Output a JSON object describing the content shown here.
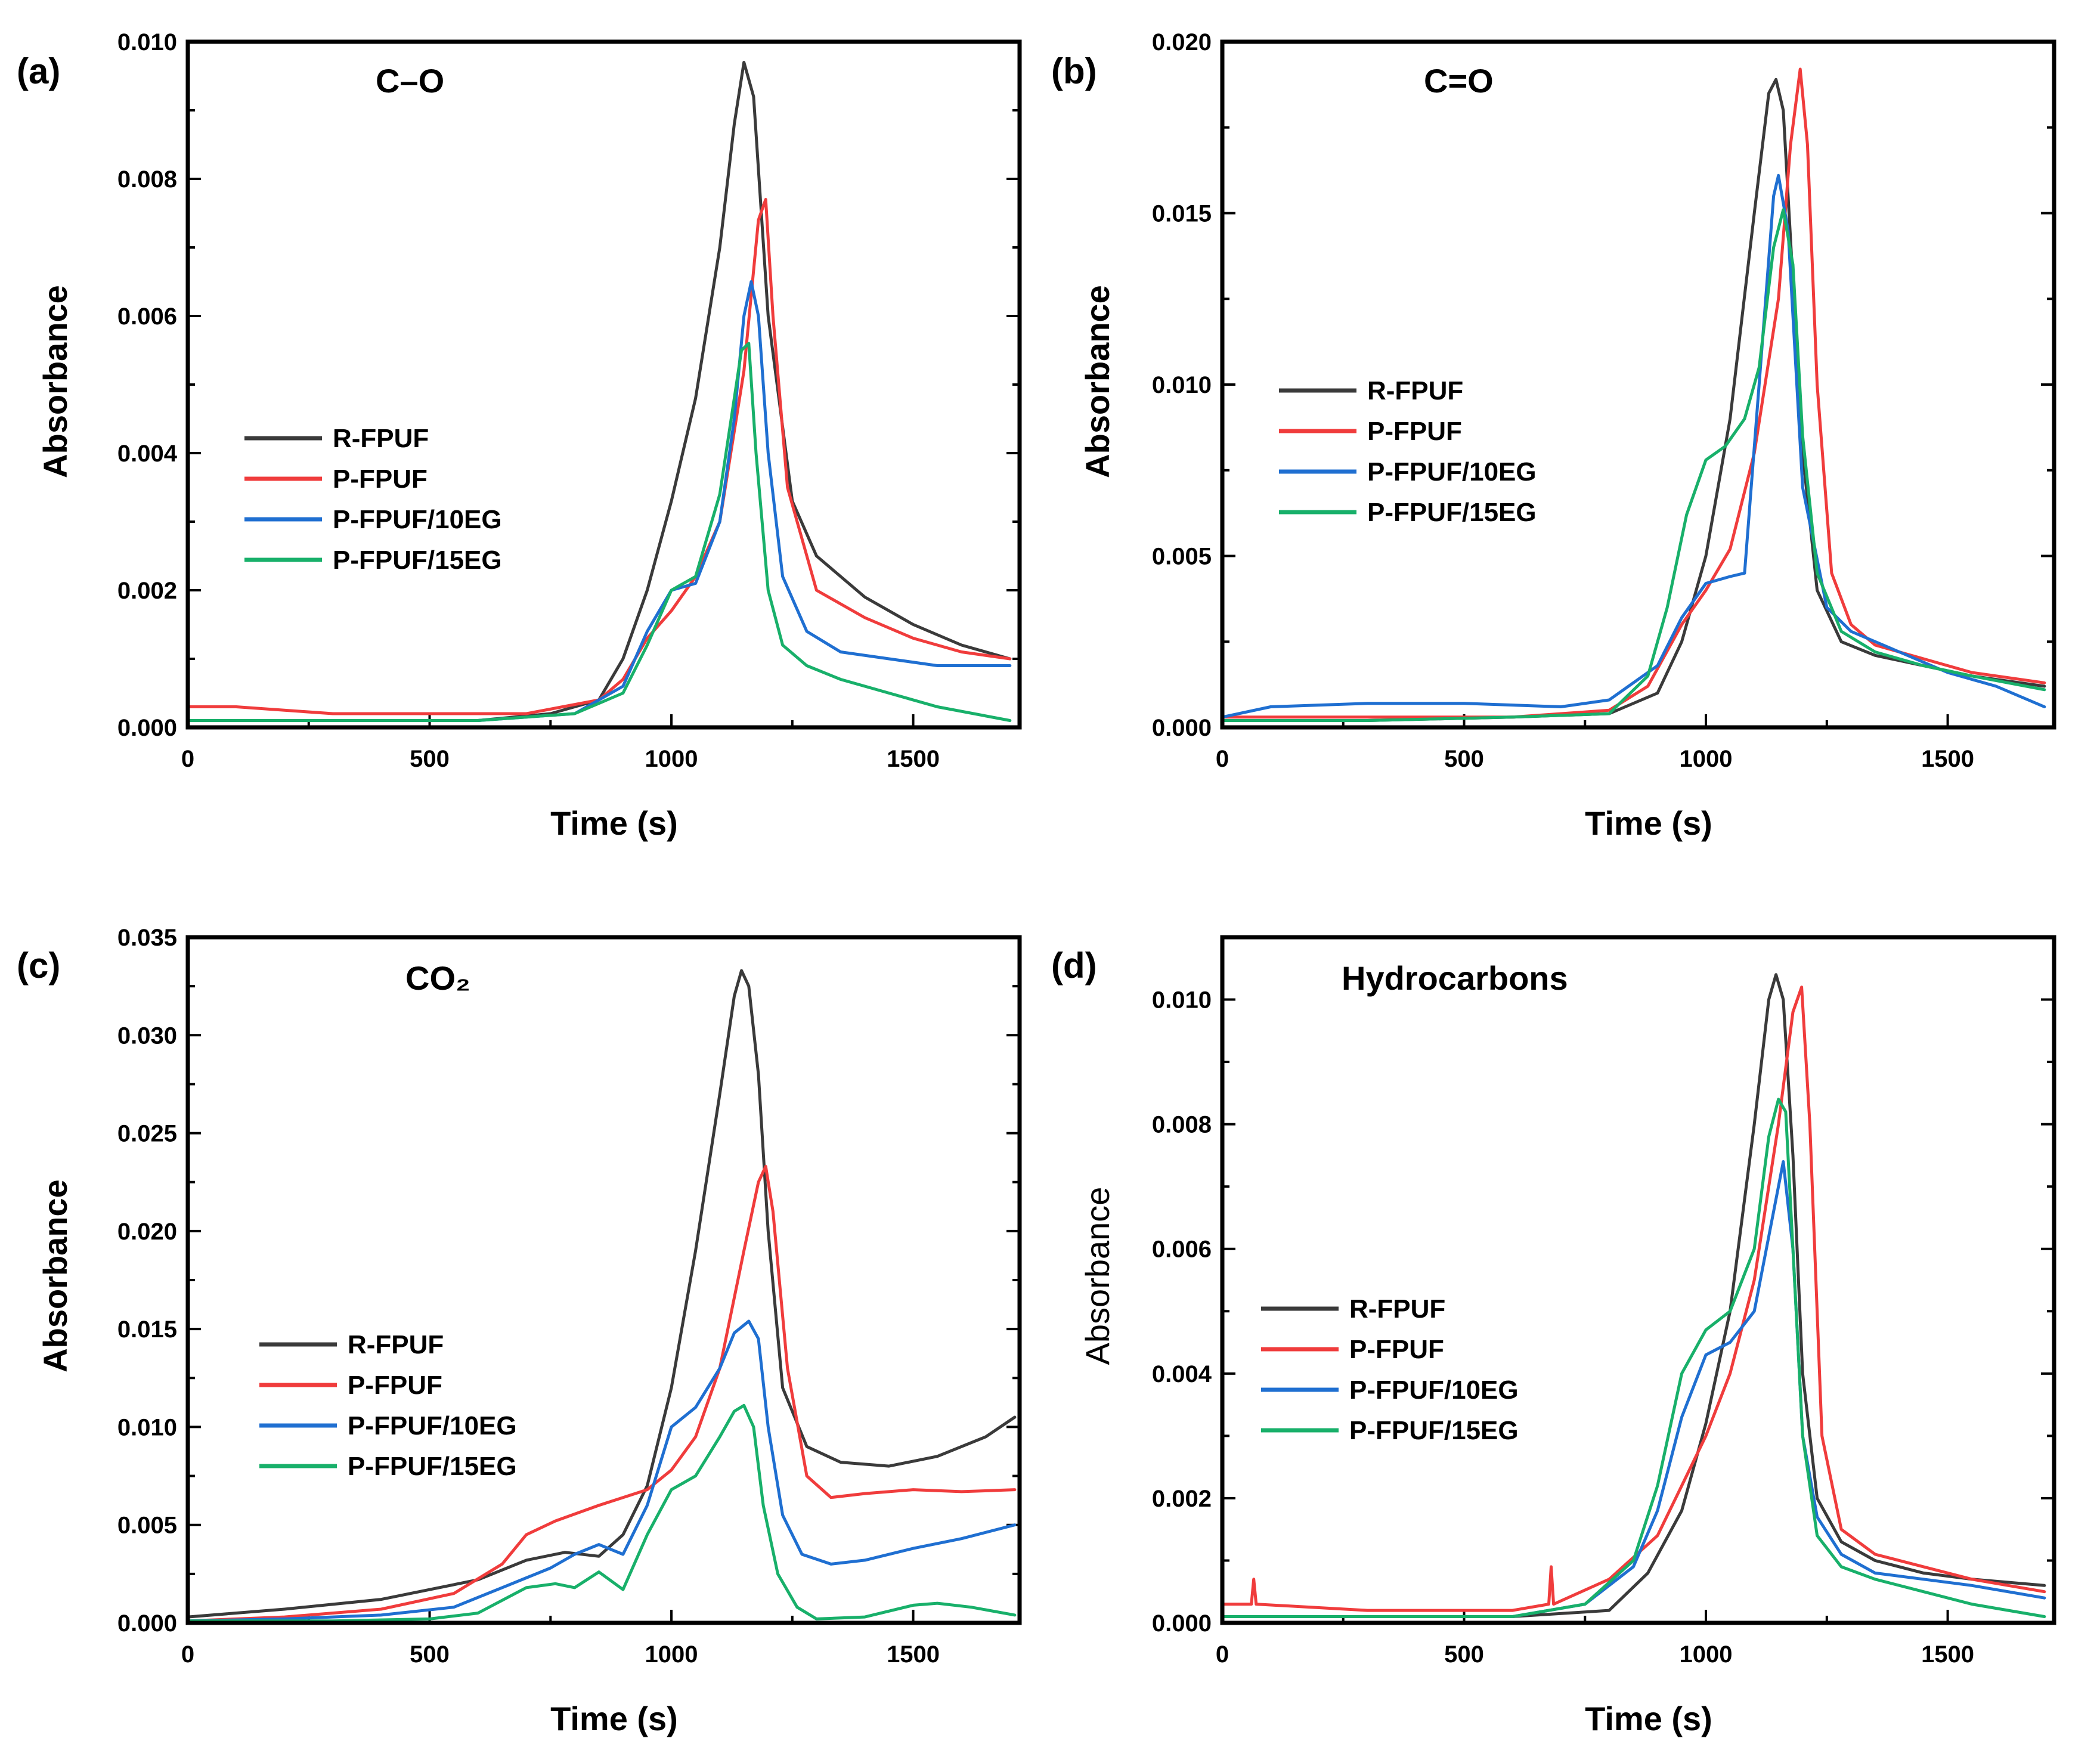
{
  "chart_data": [
    {
      "type": "line",
      "panel": "(a)",
      "title": "C–O",
      "xlabel": "Time (s)",
      "ylabel": "Absorbance",
      "xlim": [
        0,
        1720
      ],
      "ylim": [
        0,
        0.01
      ],
      "xticks": [
        "0",
        "500",
        "1000",
        "1500"
      ],
      "yticks": [
        "0.000",
        "0.002",
        "0.004",
        "0.006",
        "0.008",
        "0.010"
      ],
      "legend": [
        "R-FPUF",
        "P-FPUF",
        "P-FPUF/10EG",
        "P-FPUF/15EG"
      ],
      "series": [
        {
          "name": "R-FPUF",
          "color": "#3a3a3a",
          "x": [
            0,
            200,
            400,
            600,
            750,
            850,
            900,
            950,
            1000,
            1050,
            1100,
            1130,
            1150,
            1170,
            1200,
            1250,
            1300,
            1400,
            1500,
            1600,
            1700
          ],
          "y": [
            0.0001,
            0.0001,
            0.0001,
            0.0001,
            0.0002,
            0.0004,
            0.001,
            0.002,
            0.0033,
            0.0048,
            0.007,
            0.0088,
            0.0097,
            0.0092,
            0.006,
            0.0033,
            0.0025,
            0.0019,
            0.0015,
            0.0012,
            0.001
          ]
        },
        {
          "name": "P-FPUF",
          "color": "#f03c3c",
          "x": [
            0,
            100,
            300,
            500,
            700,
            850,
            900,
            950,
            1000,
            1050,
            1100,
            1150,
            1180,
            1195,
            1210,
            1240,
            1300,
            1400,
            1500,
            1600,
            1700
          ],
          "y": [
            0.0003,
            0.0003,
            0.0002,
            0.0002,
            0.0002,
            0.0004,
            0.0007,
            0.0013,
            0.0017,
            0.0022,
            0.003,
            0.0052,
            0.0074,
            0.0077,
            0.006,
            0.0035,
            0.002,
            0.0016,
            0.0013,
            0.0011,
            0.001
          ]
        },
        {
          "name": "P-FPUF/10EG",
          "color": "#1f6fd1",
          "x": [
            0,
            200,
            400,
            600,
            800,
            900,
            950,
            1000,
            1050,
            1100,
            1130,
            1150,
            1165,
            1180,
            1200,
            1230,
            1280,
            1350,
            1450,
            1550,
            1700
          ],
          "y": [
            0.0001,
            0.0001,
            0.0001,
            0.0001,
            0.0002,
            0.0006,
            0.0014,
            0.002,
            0.0021,
            0.003,
            0.0045,
            0.006,
            0.0065,
            0.006,
            0.004,
            0.0022,
            0.0014,
            0.0011,
            0.001,
            0.0009,
            0.0009
          ]
        },
        {
          "name": "P-FPUF/15EG",
          "color": "#18b06a",
          "x": [
            0,
            200,
            400,
            600,
            800,
            900,
            950,
            1000,
            1050,
            1100,
            1130,
            1145,
            1160,
            1175,
            1200,
            1230,
            1280,
            1350,
            1450,
            1550,
            1700
          ],
          "y": [
            0.0001,
            0.0001,
            0.0001,
            0.0001,
            0.0002,
            0.0005,
            0.0012,
            0.002,
            0.0022,
            0.0034,
            0.0048,
            0.0055,
            0.0056,
            0.004,
            0.002,
            0.0012,
            0.0009,
            0.0007,
            0.0005,
            0.0003,
            0.0001
          ]
        }
      ]
    },
    {
      "type": "line",
      "panel": "(b)",
      "title": "C=O",
      "xlabel": "Time (s)",
      "ylabel": "Absorbance",
      "xlim": [
        0,
        1720
      ],
      "ylim": [
        0,
        0.02
      ],
      "xticks": [
        "0",
        "500",
        "1000",
        "1500"
      ],
      "yticks": [
        "0.000",
        "0.005",
        "0.010",
        "0.015",
        "0.020"
      ],
      "legend": [
        "R-FPUF",
        "P-FPUF",
        "P-FPUF/10EG",
        "P-FPUF/15EG"
      ],
      "series": [
        {
          "name": "R-FPUF",
          "color": "#3a3a3a",
          "x": [
            0,
            300,
            600,
            800,
            900,
            950,
            1000,
            1050,
            1100,
            1130,
            1145,
            1160,
            1180,
            1200,
            1230,
            1280,
            1350,
            1450,
            1550,
            1700
          ],
          "y": [
            0.0002,
            0.0002,
            0.0003,
            0.0004,
            0.001,
            0.0025,
            0.005,
            0.009,
            0.015,
            0.0185,
            0.0189,
            0.018,
            0.013,
            0.008,
            0.004,
            0.0025,
            0.0021,
            0.0018,
            0.0015,
            0.0012
          ]
        },
        {
          "name": "P-FPUF",
          "color": "#f03c3c",
          "x": [
            0,
            300,
            600,
            800,
            880,
            950,
            1000,
            1050,
            1100,
            1150,
            1175,
            1195,
            1210,
            1230,
            1260,
            1300,
            1350,
            1450,
            1550,
            1700
          ],
          "y": [
            0.0003,
            0.0003,
            0.0003,
            0.0005,
            0.0012,
            0.003,
            0.004,
            0.0052,
            0.008,
            0.0125,
            0.017,
            0.0192,
            0.017,
            0.01,
            0.0045,
            0.003,
            0.0024,
            0.002,
            0.0016,
            0.0013
          ]
        },
        {
          "name": "P-FPUF/10EG",
          "color": "#1f6fd1",
          "x": [
            0,
            100,
            300,
            500,
            700,
            800,
            900,
            950,
            1000,
            1050,
            1080,
            1110,
            1140,
            1150,
            1170,
            1200,
            1250,
            1300,
            1400,
            1500,
            1600,
            1700
          ],
          "y": [
            0.0003,
            0.0006,
            0.0007,
            0.0007,
            0.0006,
            0.0008,
            0.0018,
            0.0032,
            0.0042,
            0.0044,
            0.0045,
            0.01,
            0.0155,
            0.0161,
            0.0145,
            0.007,
            0.0035,
            0.0028,
            0.0022,
            0.0016,
            0.0012,
            0.0006
          ]
        },
        {
          "name": "P-FPUF/15EG",
          "color": "#18b06a",
          "x": [
            0,
            300,
            600,
            800,
            880,
            920,
            960,
            1000,
            1040,
            1080,
            1110,
            1140,
            1160,
            1180,
            1200,
            1230,
            1280,
            1350,
            1450,
            1550,
            1700
          ],
          "y": [
            0.0002,
            0.0002,
            0.0003,
            0.0004,
            0.0015,
            0.0035,
            0.0062,
            0.0078,
            0.0082,
            0.009,
            0.0105,
            0.014,
            0.0151,
            0.0135,
            0.0085,
            0.0045,
            0.0028,
            0.0022,
            0.0018,
            0.0015,
            0.0011
          ]
        }
      ]
    },
    {
      "type": "line",
      "panel": "(c)",
      "title": "CO₂",
      "xlabel": "Time (s)",
      "ylabel": "Absorbance",
      "xlim": [
        0,
        1720
      ],
      "ylim": [
        0,
        0.035
      ],
      "xticks": [
        "0",
        "500",
        "1000",
        "1500"
      ],
      "yticks": [
        "0.000",
        "0.005",
        "0.010",
        "0.015",
        "0.020",
        "0.025",
        "0.030",
        "0.035"
      ],
      "legend": [
        "R-FPUF",
        "P-FPUF",
        "P-FPUF/10EG",
        "P-FPUF/15EG"
      ],
      "series": [
        {
          "name": "R-FPUF",
          "color": "#3a3a3a",
          "x": [
            0,
            200,
            400,
            600,
            700,
            780,
            850,
            900,
            950,
            1000,
            1050,
            1100,
            1130,
            1145,
            1160,
            1180,
            1200,
            1230,
            1280,
            1350,
            1450,
            1550,
            1650,
            1710
          ],
          "y": [
            0.0003,
            0.0007,
            0.0012,
            0.0022,
            0.0032,
            0.0036,
            0.0034,
            0.0045,
            0.007,
            0.012,
            0.019,
            0.027,
            0.032,
            0.0333,
            0.0325,
            0.028,
            0.02,
            0.012,
            0.009,
            0.0082,
            0.008,
            0.0085,
            0.0095,
            0.0105
          ]
        },
        {
          "name": "P-FPUF",
          "color": "#f03c3c",
          "x": [
            0,
            200,
            400,
            550,
            650,
            700,
            760,
            850,
            950,
            1000,
            1050,
            1100,
            1150,
            1180,
            1195,
            1210,
            1240,
            1280,
            1330,
            1400,
            1500,
            1600,
            1710
          ],
          "y": [
            0.0001,
            0.0003,
            0.0007,
            0.0015,
            0.003,
            0.0045,
            0.0052,
            0.006,
            0.0068,
            0.0078,
            0.0095,
            0.013,
            0.019,
            0.0225,
            0.0233,
            0.021,
            0.013,
            0.0075,
            0.0064,
            0.0066,
            0.0068,
            0.0067,
            0.0068
          ]
        },
        {
          "name": "P-FPUF/10EG",
          "color": "#1f6fd1",
          "x": [
            0,
            200,
            400,
            550,
            650,
            750,
            800,
            850,
            900,
            950,
            1000,
            1050,
            1100,
            1130,
            1160,
            1180,
            1200,
            1230,
            1270,
            1330,
            1400,
            1500,
            1600,
            1710
          ],
          "y": [
            0.0001,
            0.0002,
            0.0004,
            0.0008,
            0.0018,
            0.0028,
            0.0035,
            0.004,
            0.0035,
            0.006,
            0.01,
            0.011,
            0.013,
            0.0148,
            0.0154,
            0.0145,
            0.01,
            0.0055,
            0.0035,
            0.003,
            0.0032,
            0.0038,
            0.0043,
            0.005
          ]
        },
        {
          "name": "P-FPUF/15EG",
          "color": "#18b06a",
          "x": [
            0,
            300,
            500,
            600,
            700,
            760,
            800,
            850,
            900,
            950,
            1000,
            1050,
            1100,
            1130,
            1150,
            1170,
            1190,
            1220,
            1260,
            1300,
            1400,
            1500,
            1550,
            1620,
            1710
          ],
          "y": [
            0.0001,
            0.0001,
            0.0002,
            0.0005,
            0.0018,
            0.002,
            0.0018,
            0.0026,
            0.0017,
            0.0045,
            0.0068,
            0.0075,
            0.0095,
            0.0108,
            0.0111,
            0.01,
            0.006,
            0.0025,
            0.0008,
            0.0002,
            0.0003,
            0.0009,
            0.001,
            0.0008,
            0.0004
          ]
        }
      ]
    },
    {
      "type": "line",
      "panel": "(d)",
      "title": "Hydrocarbons",
      "xlabel": "Time (s)",
      "ylabel": "Absorbance",
      "xlim": [
        0,
        1720
      ],
      "ylim": [
        0,
        0.011
      ],
      "xticks": [
        "0",
        "500",
        "1000",
        "1500"
      ],
      "yticks": [
        "0.000",
        "0.002",
        "0.004",
        "0.006",
        "0.008",
        "0.010"
      ],
      "legend": [
        "R-FPUF",
        "P-FPUF",
        "P-FPUF/10EG",
        "P-FPUF/15EG"
      ],
      "series": [
        {
          "name": "R-FPUF",
          "color": "#3a3a3a",
          "x": [
            0,
            300,
            600,
            800,
            880,
            950,
            1000,
            1050,
            1100,
            1130,
            1145,
            1160,
            1180,
            1200,
            1230,
            1280,
            1350,
            1450,
            1550,
            1700
          ],
          "y": [
            0.0001,
            0.0001,
            0.0001,
            0.0002,
            0.0008,
            0.0018,
            0.0032,
            0.005,
            0.008,
            0.01,
            0.0104,
            0.01,
            0.0075,
            0.004,
            0.002,
            0.0013,
            0.001,
            0.0008,
            0.0007,
            0.0006
          ]
        },
        {
          "name": "P-FPUF",
          "color": "#f03c3c",
          "x": [
            0,
            60,
            65,
            70,
            300,
            600,
            675,
            680,
            685,
            800,
            900,
            950,
            1000,
            1050,
            1100,
            1150,
            1180,
            1198,
            1215,
            1240,
            1280,
            1350,
            1450,
            1550,
            1700
          ],
          "y": [
            0.0003,
            0.0003,
            0.0007,
            0.0003,
            0.0002,
            0.0002,
            0.0003,
            0.0009,
            0.0003,
            0.0007,
            0.0014,
            0.0022,
            0.003,
            0.004,
            0.0055,
            0.008,
            0.0098,
            0.0102,
            0.008,
            0.003,
            0.0015,
            0.0011,
            0.0009,
            0.0007,
            0.0005
          ]
        },
        {
          "name": "P-FPUF/10EG",
          "color": "#1f6fd1",
          "x": [
            0,
            300,
            600,
            750,
            850,
            900,
            950,
            1000,
            1050,
            1100,
            1130,
            1160,
            1180,
            1200,
            1230,
            1280,
            1350,
            1450,
            1550,
            1700
          ],
          "y": [
            0.0001,
            0.0001,
            0.0001,
            0.0003,
            0.0009,
            0.0018,
            0.0033,
            0.0043,
            0.0045,
            0.005,
            0.0062,
            0.0074,
            0.006,
            0.003,
            0.0017,
            0.0011,
            0.0008,
            0.0007,
            0.0006,
            0.0004
          ]
        },
        {
          "name": "P-FPUF/15EG",
          "color": "#18b06a",
          "x": [
            0,
            300,
            600,
            750,
            850,
            900,
            950,
            1000,
            1050,
            1100,
            1130,
            1150,
            1165,
            1180,
            1200,
            1230,
            1280,
            1350,
            1450,
            1550,
            1700
          ],
          "y": [
            0.0001,
            0.0001,
            0.0001,
            0.0003,
            0.001,
            0.0022,
            0.004,
            0.0047,
            0.005,
            0.006,
            0.0078,
            0.0084,
            0.0082,
            0.006,
            0.003,
            0.0014,
            0.0009,
            0.0007,
            0.0005,
            0.0003,
            0.0001
          ]
        }
      ]
    }
  ]
}
